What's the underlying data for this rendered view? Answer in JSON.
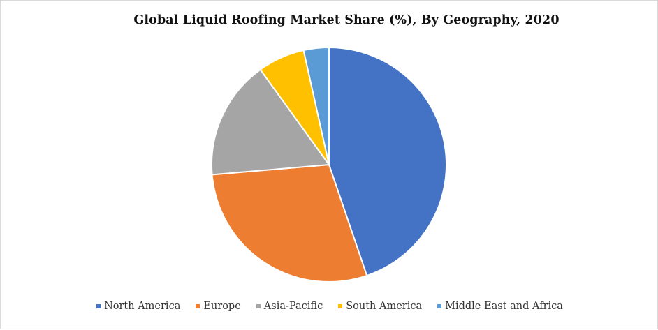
{
  "chart_data": {
    "type": "pie",
    "title": "Global Liquid Roofing Market Share (%), By Geography, 2020",
    "categories": [
      "North America",
      "Europe",
      "Asia-Pacific",
      "South America",
      "Middle East and Africa"
    ],
    "values": [
      45,
      29,
      16.5,
      6.5,
      3.5
    ],
    "colors": [
      "#4472C4",
      "#ED7D31",
      "#A5A5A5",
      "#FFC000",
      "#5B9BD5"
    ],
    "unit": "%",
    "start_angle": "12 o'clock",
    "direction": "clockwise",
    "legend_position": "bottom"
  }
}
